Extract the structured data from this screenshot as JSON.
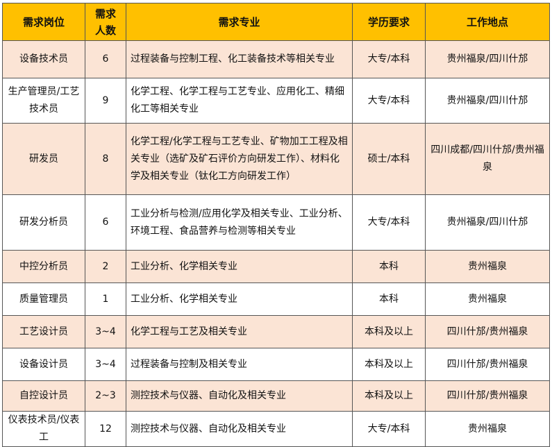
{
  "colors": {
    "header": "#ffc000",
    "shaded_row": "#fbe4d5"
  },
  "headers": [
    "需求岗位",
    "需求人数",
    "需求专业",
    "学历要求",
    "工作地点"
  ],
  "rows": [
    {
      "position": "设备技术员",
      "count": "6",
      "major": "过程装备与控制工程、化工装备技术等相关专业",
      "education": "大专/本科",
      "location": "贵州福泉/四川什邡",
      "shaded": true
    },
    {
      "position": "生产管理员/工艺技术员",
      "count": "9",
      "major": "化学工程、化学工程与工艺专业、应用化工、精细化工等相关专业",
      "education": "大专/本科",
      "location": "贵州福泉/四川什邡",
      "shaded": false
    },
    {
      "position": "研发员",
      "count": "8",
      "major": "化学工程/化学工程与工艺专业、矿物加工工程及相关专业（选矿及矿石评价方向研发工作）、材料化学及相关专业（钛化工方向研发工作）",
      "education": "硕士/本科",
      "location": "四川成都/四川什邡/贵州福泉",
      "shaded": true
    },
    {
      "position": "研发分析员",
      "count": "6",
      "major": "工业分析与检测/应用化学及相关专业、工业分析、环境工程、食品营养与检测等相关专业",
      "education": "大专/本科",
      "location": "贵州福泉/四川什邡",
      "shaded": false
    },
    {
      "position": "中控分析员",
      "count": "2",
      "major": "工业分析、化学相关专业",
      "education": "本科",
      "location": "贵州福泉",
      "shaded": true
    },
    {
      "position": "质量管理员",
      "count": "1",
      "major": "工业分析、化学相关专业",
      "education": "本科",
      "location": "贵州福泉",
      "shaded": false
    },
    {
      "position": "工艺设计员",
      "count": "3~4",
      "major": "化学工程与工艺及相关专业",
      "education": "本科及以上",
      "location": "四川什邡/贵州福泉",
      "shaded": true
    },
    {
      "position": "设备设计员",
      "count": "3~4",
      "major": "过程装备与控制及相关专业",
      "education": "本科及以上",
      "location": "四川什邡/贵州福泉",
      "shaded": false
    },
    {
      "position": "自控设计员",
      "count": "2~3",
      "major": "测控技术与仪器、自动化及相关专业",
      "education": "本科及以上",
      "location": "四川什邡/贵州福泉",
      "shaded": true
    },
    {
      "position": "仪表技术员/仪表工",
      "count": "12",
      "major": "测控技术与仪器、自动化及相关专业",
      "education": "大专/本科",
      "location": "贵州福泉",
      "shaded": false
    }
  ]
}
